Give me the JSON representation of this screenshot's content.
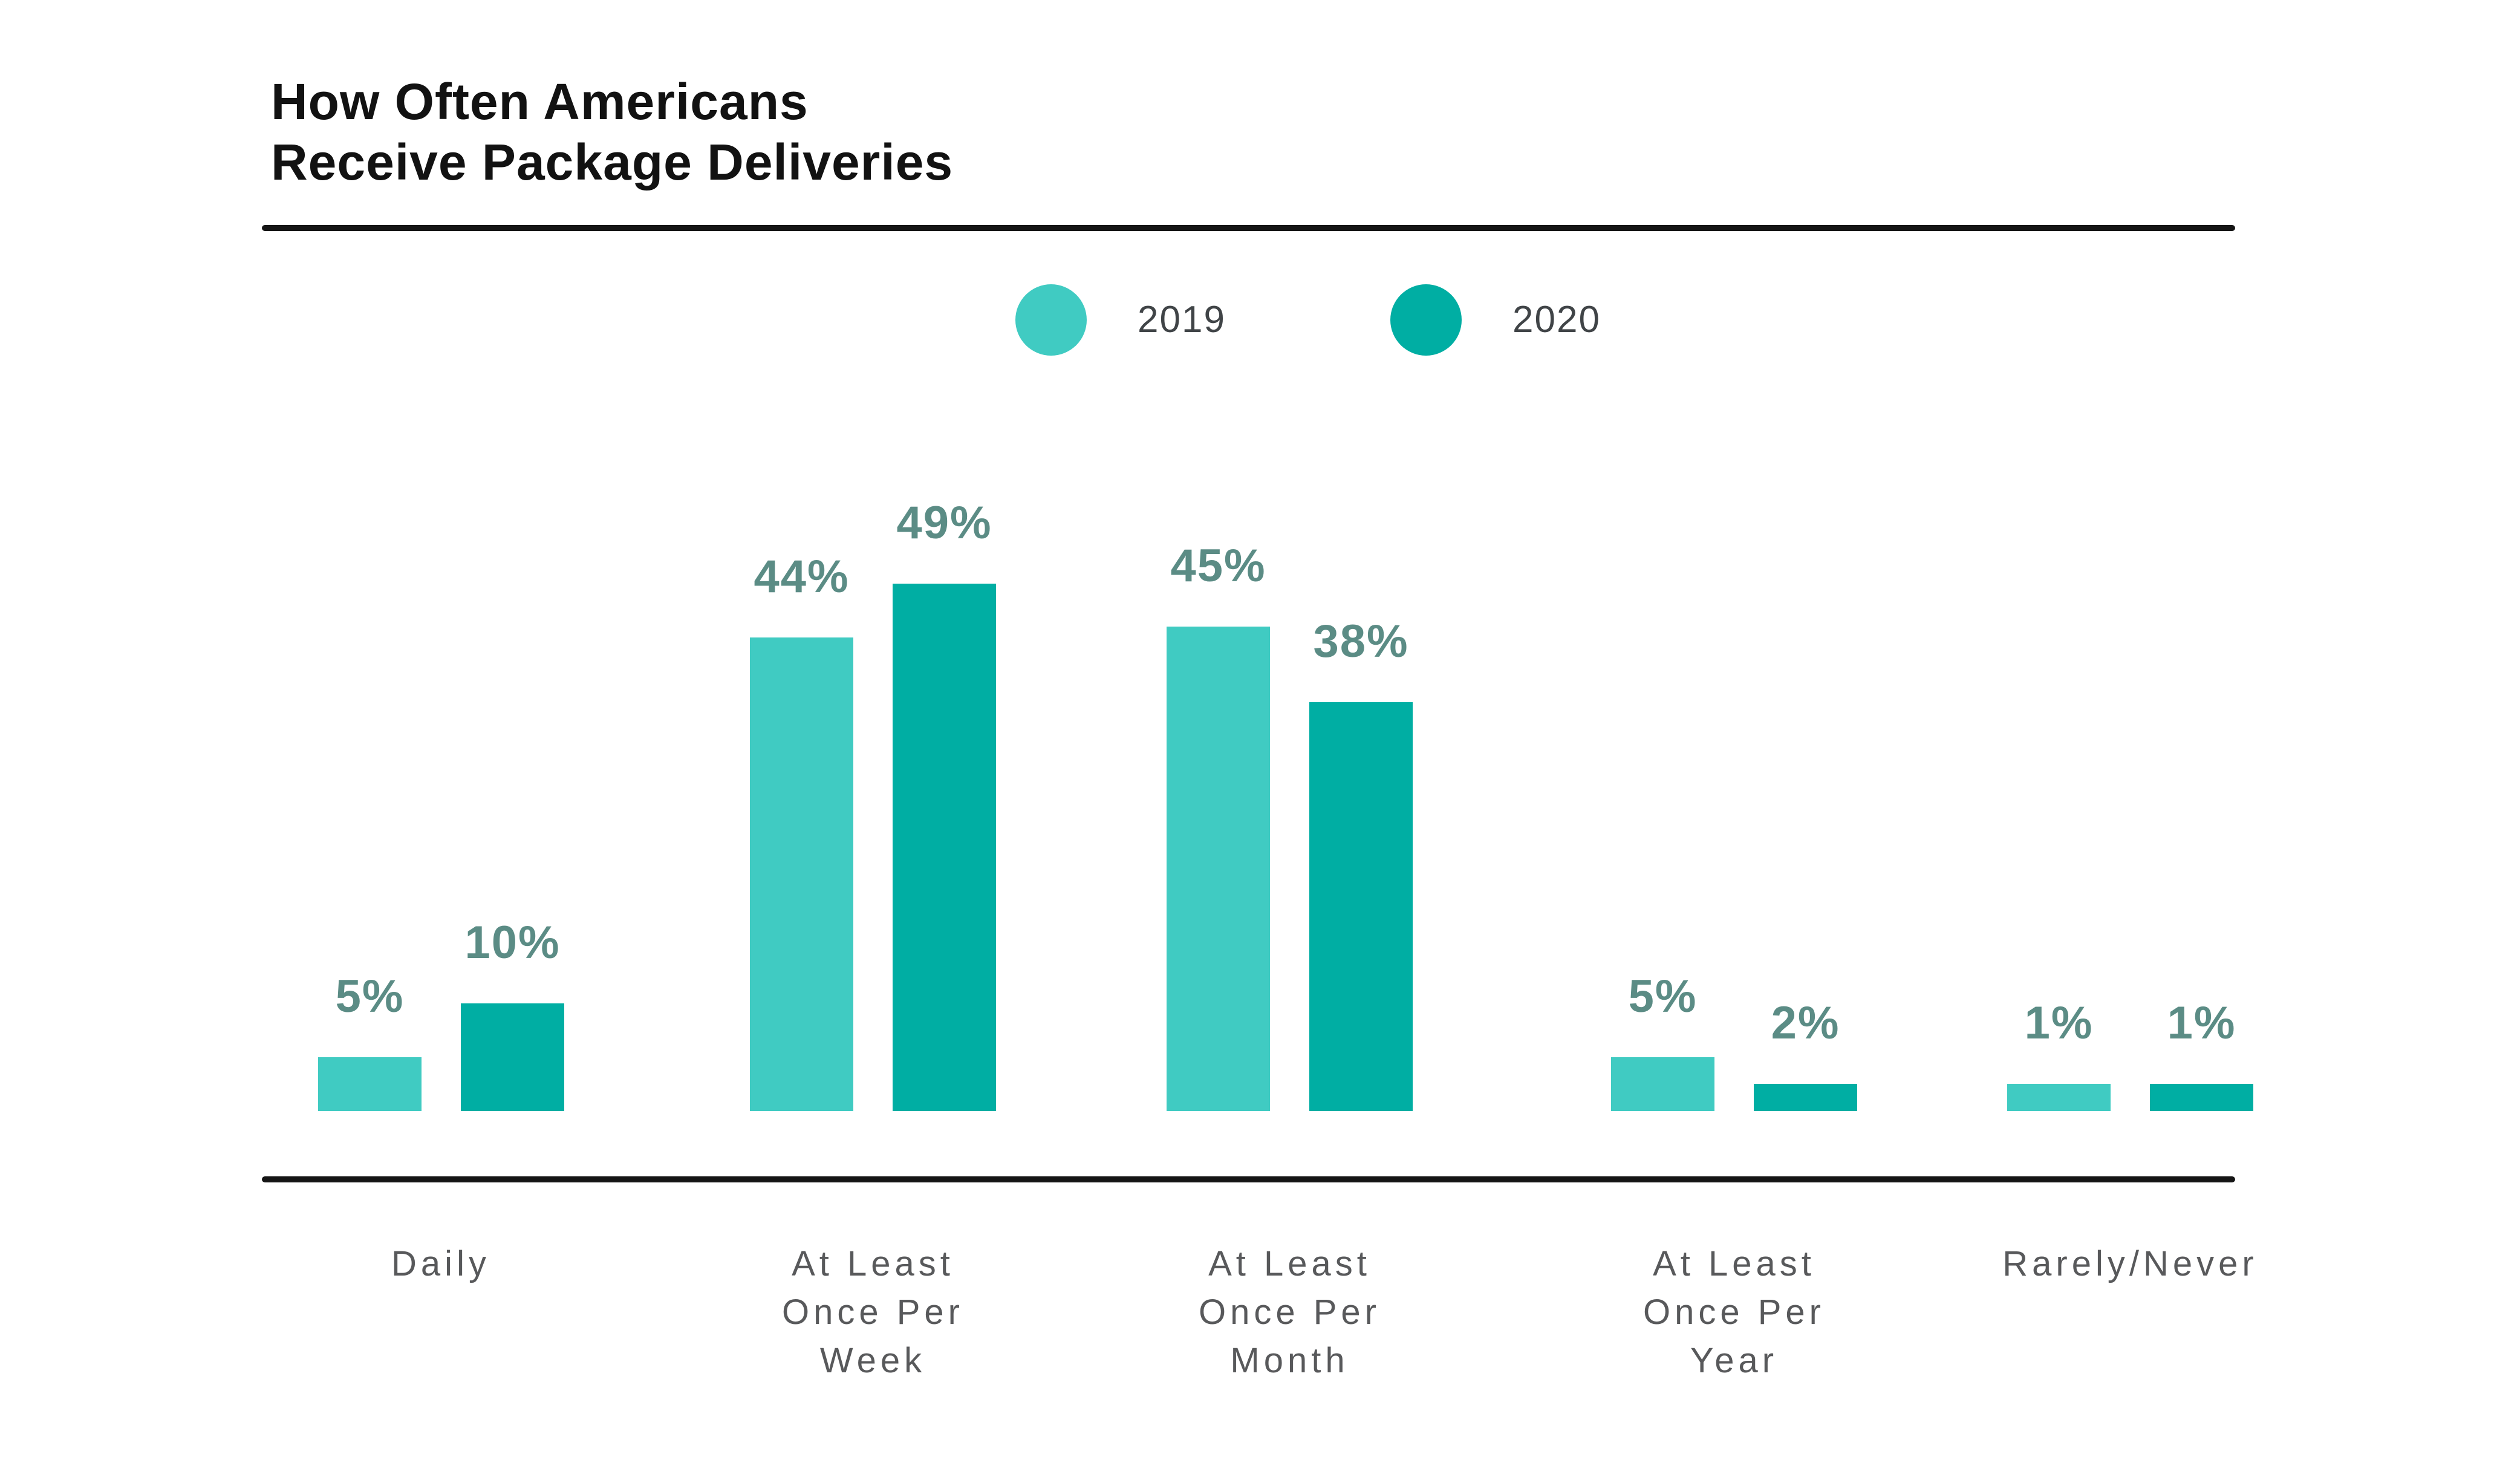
{
  "title": {
    "line1": "How Often Americans",
    "line2": "Receive Package Deliveries"
  },
  "legend": {
    "items": [
      {
        "label": "2019",
        "color": "#40CBC2"
      },
      {
        "label": "2020",
        "color": "#00AEA3"
      }
    ]
  },
  "chart_data": {
    "type": "bar",
    "title": "How Often Americans Receive Package Deliveries",
    "categories": [
      "Daily",
      "At Least Once Per Week",
      "At Least Once Per Month",
      "At Least Once Per Year",
      "Rarely/Never"
    ],
    "category_display": [
      "Daily",
      "At Least\nOnce Per\nWeek",
      "At Least\nOnce Per\nMonth",
      "At Least\nOnce Per\nYear",
      "Rarely/Never"
    ],
    "series": [
      {
        "name": "2019",
        "color": "#40CBC2",
        "values": [
          5,
          44,
          45,
          5,
          1
        ],
        "labels": [
          "5%",
          "44%",
          "45%",
          "5%",
          "1%"
        ]
      },
      {
        "name": "2020",
        "color": "#00AEA3",
        "values": [
          10,
          49,
          38,
          2,
          1
        ],
        "labels": [
          "10%",
          "49%",
          "38%",
          "2%",
          "1%"
        ]
      }
    ],
    "value_suffix": "%",
    "xlabel": "",
    "ylabel": "",
    "ylim": [
      0,
      52
    ],
    "grid": false,
    "legend_position": "top-center",
    "data_label_color": "#5B8C85",
    "axis_line_color": "#151515",
    "category_label_color": "#58595B"
  }
}
